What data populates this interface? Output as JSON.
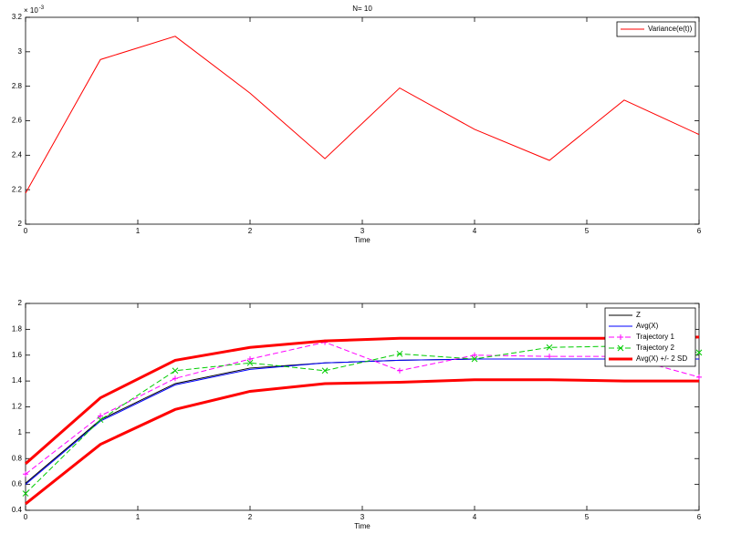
{
  "chart_data": [
    {
      "type": "line",
      "title": "N= 10",
      "x_label": "Time",
      "y_scale_base": "× 10",
      "y_scale_exponent": "-3",
      "x": [
        0,
        0.667,
        1.333,
        2,
        2.667,
        3.333,
        4,
        4.667,
        5.333,
        6
      ],
      "series": [
        {
          "name": "Variance(e(t))",
          "color": "#ff0000",
          "values": [
            2.18,
            2.955,
            3.09,
            2.76,
            2.38,
            2.79,
            2.55,
            2.37,
            2.72,
            2.52
          ]
        }
      ],
      "xlim": [
        0,
        6
      ],
      "xticks": [
        0,
        1,
        2,
        3,
        4,
        5,
        6
      ],
      "ylim": [
        2,
        3.2
      ],
      "yticks": [
        2,
        2.2,
        2.4,
        2.6,
        2.8,
        3,
        3.2
      ],
      "legend": "upper right"
    },
    {
      "type": "line",
      "x_label": "Time",
      "x": [
        0,
        0.667,
        1.333,
        2,
        2.667,
        3.333,
        4,
        4.667,
        5.333,
        6
      ],
      "series": [
        {
          "name": "Z",
          "color": "#000000",
          "values": [
            0.61,
            1.1,
            1.38,
            1.5,
            1.54,
            1.56,
            1.57,
            1.57,
            1.57,
            1.57
          ]
        },
        {
          "name": "Avg(X)",
          "color": "#0000ff",
          "values": [
            0.6,
            1.09,
            1.37,
            1.49,
            1.54,
            1.56,
            1.57,
            1.57,
            1.57,
            1.57
          ]
        },
        {
          "name": "Trajectory 1",
          "color": "#ff00ff",
          "dash": true,
          "marker": "+",
          "values": [
            0.68,
            1.13,
            1.42,
            1.57,
            1.7,
            1.48,
            1.6,
            1.59,
            1.59,
            1.43
          ]
        },
        {
          "name": "Trajectory 2",
          "color": "#00cc00",
          "dash": true,
          "marker": "x",
          "values": [
            0.53,
            1.1,
            1.48,
            1.54,
            1.48,
            1.61,
            1.57,
            1.66,
            1.67,
            1.62
          ]
        },
        {
          "name": "Avg(X) +/- 2 SD",
          "color": "#ff0000",
          "thick": true,
          "values": [
            0.76,
            1.27,
            1.56,
            1.66,
            1.71,
            1.73,
            1.73,
            1.73,
            1.73,
            1.74
          ],
          "values_lower": [
            0.45,
            0.91,
            1.18,
            1.32,
            1.38,
            1.39,
            1.41,
            1.41,
            1.4,
            1.4
          ]
        }
      ],
      "xlim": [
        0,
        6
      ],
      "xticks": [
        0,
        1,
        2,
        3,
        4,
        5,
        6
      ],
      "ylim": [
        0.4,
        2
      ],
      "yticks": [
        0.4,
        0.6,
        0.8,
        1,
        1.2,
        1.4,
        1.6,
        1.8,
        2
      ],
      "legend": "upper right"
    }
  ]
}
